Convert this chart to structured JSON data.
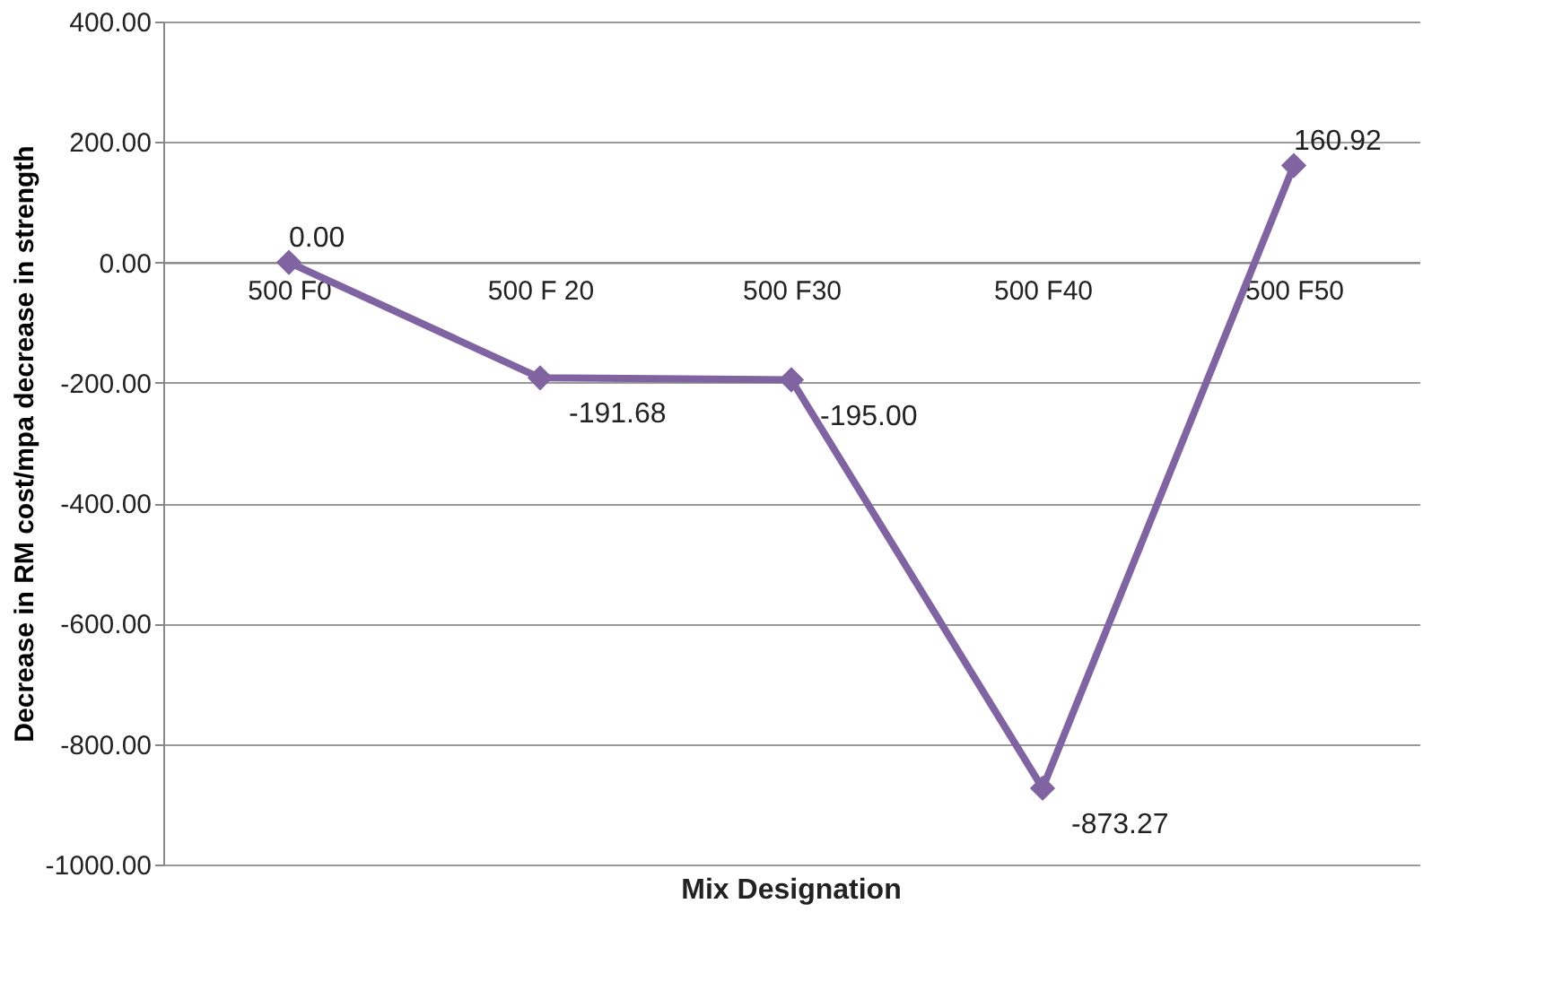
{
  "chart_data": {
    "type": "line",
    "xlabel": "Mix Designation",
    "ylabel": "Decrease in RM cost/mpa decrease in strength",
    "categories": [
      "500 F0",
      "500 F 20",
      "500 F30",
      "500 F40",
      "500 F50"
    ],
    "series": [
      {
        "color": "#8064a2",
        "values": [
          0.0,
          -191.68,
          -195.0,
          -873.27,
          160.92
        ]
      }
    ],
    "value_labels": [
      "0.00",
      "-191.68",
      "-195.00",
      "-873.27",
      "160.92"
    ],
    "ylim": [
      -1000,
      400
    ],
    "yticks": [
      {
        "value": 400,
        "label": "400.00"
      },
      {
        "value": 200,
        "label": "200.00"
      },
      {
        "value": 0,
        "label": "0.00"
      },
      {
        "value": -200,
        "label": "-200.00"
      },
      {
        "value": -400,
        "label": "-400.00"
      },
      {
        "value": -600,
        "label": "-600.00"
      },
      {
        "value": -800,
        "label": "-800.00"
      },
      {
        "value": -1000,
        "label": "-1000.00"
      }
    ],
    "grid": "y",
    "marker": "diamond",
    "line_style": "solid"
  }
}
